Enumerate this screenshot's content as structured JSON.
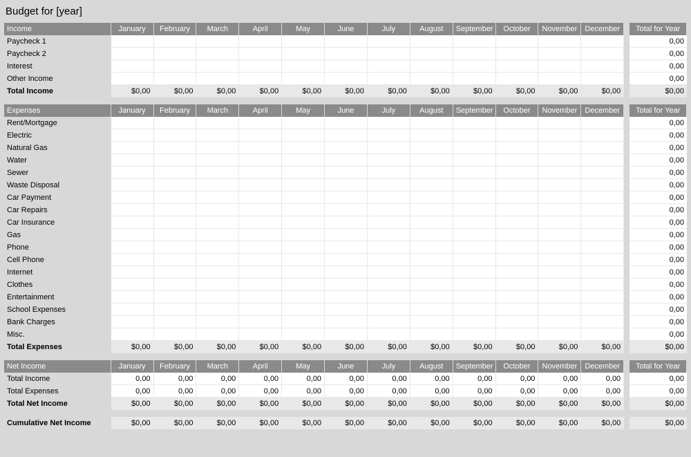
{
  "title": "Budget for [year]",
  "months": [
    "January",
    "February",
    "March",
    "April",
    "May",
    "June",
    "July",
    "August",
    "September",
    "October",
    "November",
    "December"
  ],
  "totalHeader": "Total for Year",
  "zero": "0,00",
  "dollarZero": "$0,00",
  "colors": {
    "pageBg": "#d8d8d8",
    "headerBg": "#8a8a8a",
    "headerText": "#ffffff",
    "cellBg": "#ffffff",
    "shadedCellBg": "#e8e8e8",
    "cellBorder": "#e8e8e8",
    "text": "#000000"
  },
  "layout": {
    "widthPx": 1000,
    "labelColPx": 150,
    "monthColPx": 60,
    "gapColPx": 8,
    "totalColPx": 80,
    "rowHeightPx": 18,
    "fontSizePx": 11,
    "titleFontSizePx": 15
  },
  "sections": [
    {
      "name": "income",
      "header": "Income",
      "rows": [
        {
          "label": "Paycheck 1",
          "monthValue": "",
          "total": "0,00",
          "shaded": false,
          "bold": false
        },
        {
          "label": "Paycheck 2",
          "monthValue": "",
          "total": "0,00",
          "shaded": false,
          "bold": false
        },
        {
          "label": "Interest",
          "monthValue": "",
          "total": "0,00",
          "shaded": false,
          "bold": false
        },
        {
          "label": "Other Income",
          "monthValue": "",
          "total": "0,00",
          "shaded": false,
          "bold": false
        },
        {
          "label": "Total Income",
          "monthValue": "$0,00",
          "total": "$0,00",
          "shaded": true,
          "bold": true
        }
      ]
    },
    {
      "name": "expenses",
      "header": "Expenses",
      "rows": [
        {
          "label": "Rent/Mortgage",
          "monthValue": "",
          "total": "0,00",
          "shaded": false,
          "bold": false
        },
        {
          "label": "Electric",
          "monthValue": "",
          "total": "0,00",
          "shaded": false,
          "bold": false
        },
        {
          "label": "Natural Gas",
          "monthValue": "",
          "total": "0,00",
          "shaded": false,
          "bold": false
        },
        {
          "label": "Water",
          "monthValue": "",
          "total": "0,00",
          "shaded": false,
          "bold": false
        },
        {
          "label": "Sewer",
          "monthValue": "",
          "total": "0,00",
          "shaded": false,
          "bold": false
        },
        {
          "label": "Waste Disposal",
          "monthValue": "",
          "total": "0,00",
          "shaded": false,
          "bold": false
        },
        {
          "label": "Car Payment",
          "monthValue": "",
          "total": "0,00",
          "shaded": false,
          "bold": false
        },
        {
          "label": "Car Repairs",
          "monthValue": "",
          "total": "0,00",
          "shaded": false,
          "bold": false
        },
        {
          "label": "Car Insurance",
          "monthValue": "",
          "total": "0,00",
          "shaded": false,
          "bold": false
        },
        {
          "label": "Gas",
          "monthValue": "",
          "total": "0,00",
          "shaded": false,
          "bold": false
        },
        {
          "label": "Phone",
          "monthValue": "",
          "total": "0,00",
          "shaded": false,
          "bold": false
        },
        {
          "label": "Cell Phone",
          "monthValue": "",
          "total": "0,00",
          "shaded": false,
          "bold": false
        },
        {
          "label": "Internet",
          "monthValue": "",
          "total": "0,00",
          "shaded": false,
          "bold": false
        },
        {
          "label": "Clothes",
          "monthValue": "",
          "total": "0,00",
          "shaded": false,
          "bold": false
        },
        {
          "label": "Entertainment",
          "monthValue": "",
          "total": "0,00",
          "shaded": false,
          "bold": false
        },
        {
          "label": "School Expenses",
          "monthValue": "",
          "total": "0,00",
          "shaded": false,
          "bold": false
        },
        {
          "label": "Bank Charges",
          "monthValue": "",
          "total": "0,00",
          "shaded": false,
          "bold": false
        },
        {
          "label": "Misc.",
          "monthValue": "",
          "total": "0,00",
          "shaded": false,
          "bold": false
        },
        {
          "label": "Total Expenses",
          "monthValue": "$0,00",
          "total": "$0,00",
          "shaded": true,
          "bold": true
        }
      ]
    },
    {
      "name": "netincome",
      "header": "Net Income",
      "rows": [
        {
          "label": "Total Income",
          "monthValue": "0,00",
          "total": "0,00",
          "shaded": false,
          "bold": false
        },
        {
          "label": "Total Expenses",
          "monthValue": "0,00",
          "total": "0,00",
          "shaded": false,
          "bold": false
        },
        {
          "label": "Total Net Income",
          "monthValue": "$0,00",
          "total": "$0,00",
          "shaded": true,
          "bold": true
        },
        {
          "spacer": true
        },
        {
          "label": "Cumulative Net Income",
          "monthValue": "$0,00",
          "total": "$0,00",
          "shaded": true,
          "bold": true
        }
      ]
    }
  ]
}
